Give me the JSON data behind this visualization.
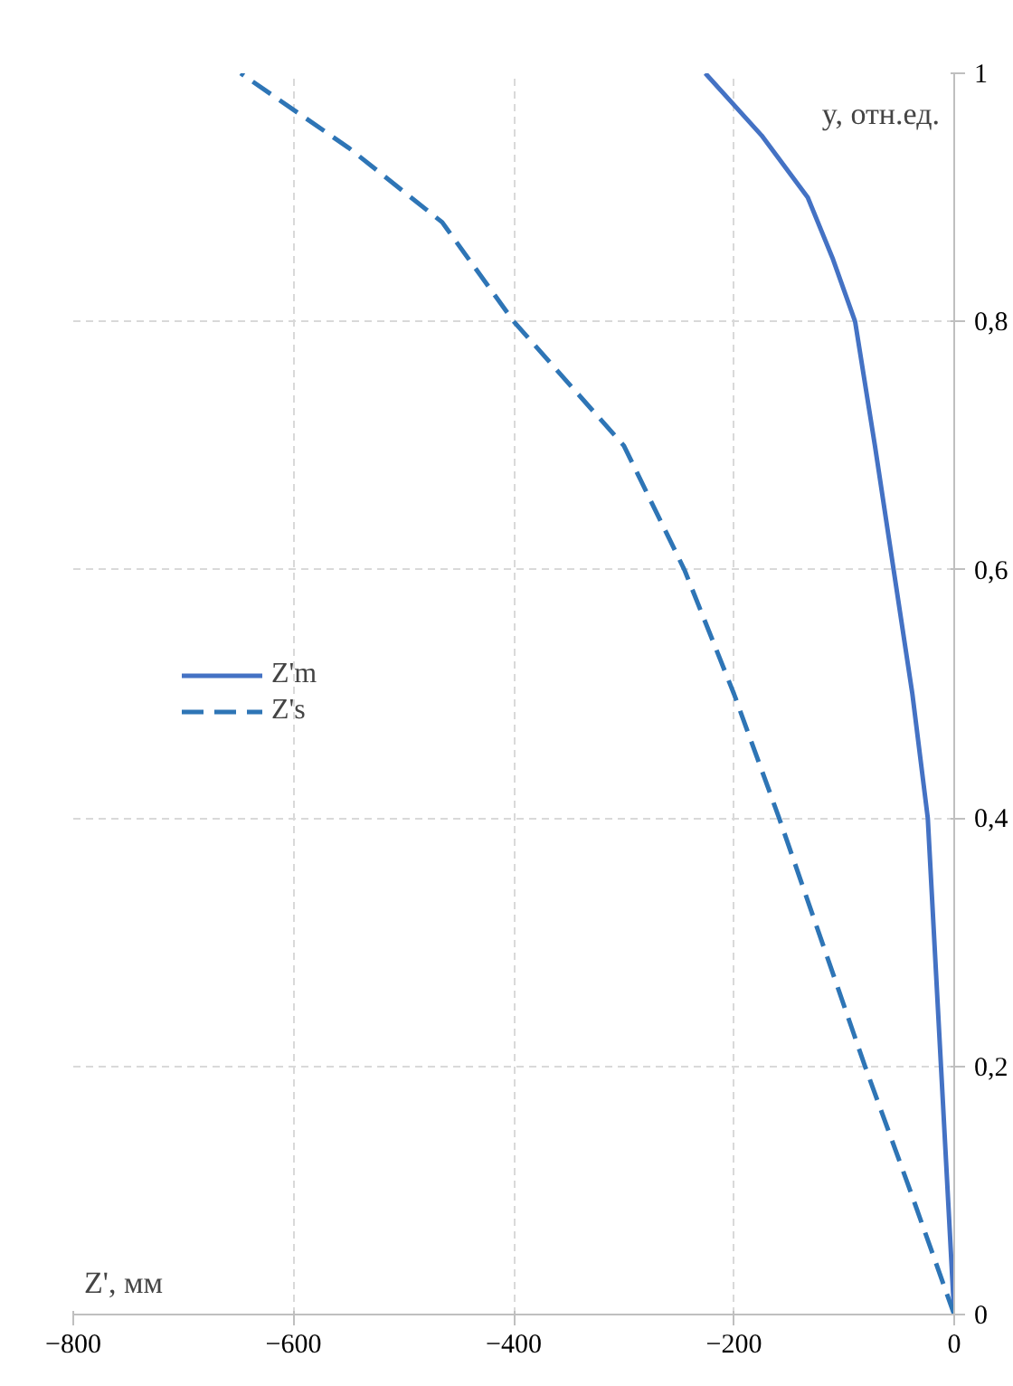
{
  "chart_data": {
    "type": "line",
    "xlabel": "Z', мм",
    "ylabel": "y, отн.ед.",
    "series": [
      {
        "name": "Z'm",
        "color": "#4472c4",
        "line_style": "solid",
        "x": [
          0,
          -12,
          -24,
          -38,
          -55,
          -72,
          -90,
          -110,
          -133,
          -175,
          -226
        ],
        "values": [
          0,
          0.2,
          0.4,
          0.5,
          0.6,
          0.7,
          0.8,
          0.85,
          0.9,
          0.95,
          1
        ]
      },
      {
        "name": "Z's",
        "color": "#2e75b6",
        "line_style": "dashed",
        "x": [
          0,
          -40,
          -81,
          -120,
          -159,
          -200,
          -245,
          -300,
          -400,
          -465,
          -550,
          -648
        ],
        "values": [
          0,
          0.1,
          0.2,
          0.3,
          0.4,
          0.5,
          0.6,
          0.7,
          0.8,
          0.88,
          0.94,
          1
        ]
      }
    ],
    "xlim": [
      -800,
      0
    ],
    "ylim": [
      0,
      1
    ],
    "xticks": [
      -800,
      -600,
      -400,
      -200,
      0
    ],
    "yticks": [
      0,
      {
        "value": 0.2,
        "label": "0,2"
      },
      {
        "value": 0.4,
        "label": "0,4"
      },
      {
        "value": 0.6,
        "label": "0,6"
      },
      {
        "value": 0.8,
        "label": "0,8"
      },
      1
    ],
    "grid": true,
    "legend": "left"
  }
}
